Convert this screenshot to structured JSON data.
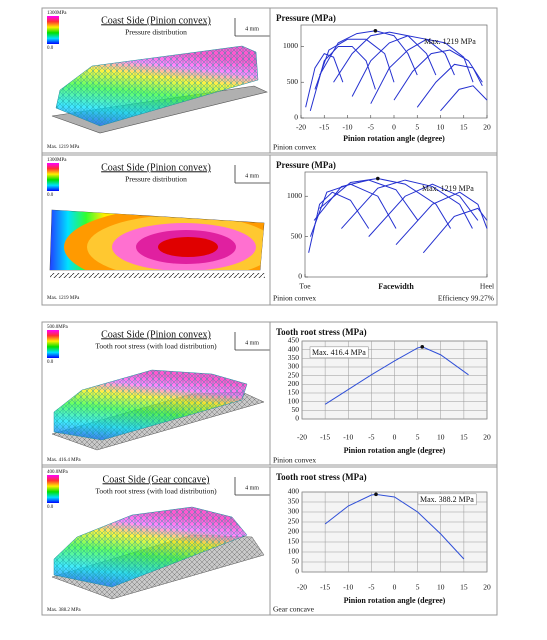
{
  "panels": [
    {
      "scale_max": "1300MPa",
      "scale_min": "0.0",
      "title": "Coast Side  (Pinion convex)",
      "subtitle": "Pressure distribution",
      "scale_bar": "4 mm",
      "max_label": "Max. 1219 MPa"
    },
    {
      "scale_max": "1300MPa",
      "scale_min": "0.0",
      "title": "Coast Side  (Pinion convex)",
      "subtitle": "Pressure distribution",
      "scale_bar": "4 mm",
      "max_label": "Max. 1219 MPa"
    },
    {
      "scale_max": "500.0MPa",
      "scale_min": "0.0",
      "title": "Coast Side  (Pinion convex)",
      "subtitle": "Tooth root stress (with load distribution)",
      "scale_bar": "4 mm",
      "max_label": "Max. 416.4 MPa"
    },
    {
      "scale_max": "400.0MPa",
      "scale_min": "0.0",
      "title": "Coast Side  (Gear concave)",
      "subtitle": "Tooth root stress (with load distribution)",
      "scale_bar": "4 mm",
      "max_label": "Max. 388.2 MPa"
    }
  ],
  "chart_data": [
    {
      "type": "line",
      "title": "Pressure  (MPa)",
      "xlabel": "Pinion rotation angle  (degree)",
      "annotation": "Max. 1219 MPa",
      "footer": "Pinion convex",
      "xlim": [
        -20,
        20
      ],
      "xticks": [
        -20,
        -15,
        -10,
        -5,
        0,
        5,
        10,
        15,
        20
      ],
      "ylim": [
        0,
        1300
      ],
      "yticks": [
        0,
        500,
        1000
      ],
      "grid": false,
      "color": "#2430d0",
      "series": [
        {
          "x": [
            -19,
            -17,
            -15,
            -13,
            -11
          ],
          "values": [
            150,
            700,
            900,
            850,
            500
          ]
        },
        {
          "x": [
            -18,
            -15,
            -12,
            -9,
            -6,
            -4
          ],
          "values": [
            100,
            800,
            1000,
            1000,
            800,
            400
          ]
        },
        {
          "x": [
            -17,
            -14,
            -10,
            -6,
            -2,
            0
          ],
          "values": [
            400,
            950,
            1100,
            1100,
            900,
            500
          ]
        },
        {
          "x": [
            -16,
            -12,
            -8,
            -4,
            0,
            3,
            5
          ],
          "values": [
            600,
            1050,
            1180,
            1219,
            1150,
            900,
            600
          ]
        },
        {
          "x": [
            -13,
            -9,
            -5,
            -1,
            3,
            7,
            9
          ],
          "values": [
            500,
            900,
            1150,
            1200,
            1150,
            900,
            600
          ]
        },
        {
          "x": [
            -9,
            -5,
            -1,
            3,
            7,
            11,
            13
          ],
          "values": [
            300,
            800,
            1050,
            1150,
            1100,
            900,
            600
          ]
        },
        {
          "x": [
            -5,
            -1,
            3,
            7,
            11,
            15,
            17
          ],
          "values": [
            200,
            700,
            950,
            1100,
            1050,
            850,
            500
          ]
        },
        {
          "x": [
            0,
            4,
            8,
            12,
            16,
            19
          ],
          "values": [
            250,
            650,
            900,
            950,
            800,
            500
          ]
        },
        {
          "x": [
            5,
            9,
            13,
            17,
            19
          ],
          "values": [
            150,
            500,
            750,
            700,
            450
          ]
        },
        {
          "x": [
            10,
            14,
            17,
            20
          ],
          "values": [
            100,
            400,
            450,
            250
          ]
        }
      ]
    },
    {
      "type": "line",
      "title": "Pressure  (MPa)",
      "xlabel": "Facewidth",
      "annotation": "Max. 1219 MPa",
      "footer": "Pinion convex",
      "footnote": "Efficiency 99.27%",
      "xlim": [
        0,
        1
      ],
      "xticks": [
        {
          "value": 0,
          "label": "Toe"
        },
        {
          "value": 1,
          "label": "Heel"
        }
      ],
      "ylim": [
        0,
        1300
      ],
      "yticks": [
        0,
        500,
        1000
      ],
      "grid": false,
      "color": "#2430d0",
      "series": [
        {
          "x": [
            0.02,
            0.08,
            0.15,
            0.25,
            0.35
          ],
          "values": [
            300,
            900,
            1050,
            950,
            600
          ]
        },
        {
          "x": [
            0.03,
            0.12,
            0.25,
            0.4,
            0.5
          ],
          "values": [
            500,
            1050,
            1150,
            1000,
            600
          ]
        },
        {
          "x": [
            0.05,
            0.2,
            0.35,
            0.5,
            0.62
          ],
          "values": [
            700,
            1120,
            1200,
            1080,
            700
          ]
        },
        {
          "x": [
            0.08,
            0.25,
            0.4,
            0.55,
            0.72,
            0.8
          ],
          "values": [
            850,
            1170,
            1219,
            1150,
            900,
            600
          ]
        },
        {
          "x": [
            0.2,
            0.4,
            0.55,
            0.7,
            0.85,
            0.92
          ],
          "values": [
            600,
            1100,
            1200,
            1120,
            900,
            600
          ]
        },
        {
          "x": [
            0.35,
            0.55,
            0.7,
            0.85,
            0.95
          ],
          "values": [
            500,
            1000,
            1150,
            1000,
            700
          ]
        },
        {
          "x": [
            0.5,
            0.7,
            0.85,
            0.95,
            1.0
          ],
          "values": [
            400,
            900,
            1050,
            900,
            600
          ]
        },
        {
          "x": [
            0.65,
            0.82,
            0.95,
            1.0
          ],
          "values": [
            300,
            750,
            850,
            700
          ]
        }
      ]
    },
    {
      "type": "line",
      "title": "Tooth root stress  (MPa)",
      "xlabel": "Pinion rotation angle  (degree)",
      "annotation": "Max. 416.4 MPa",
      "footer": "Pinion convex",
      "xlim": [
        -20,
        20
      ],
      "xticks": [
        -20,
        -15,
        -10,
        -5,
        0,
        5,
        10,
        15,
        20
      ],
      "ylim": [
        0,
        450
      ],
      "yticks": [
        0,
        50,
        100,
        150,
        200,
        250,
        300,
        350,
        400,
        450
      ],
      "grid": true,
      "color": "#3050d8",
      "series": [
        {
          "x": [
            -15,
            -10,
            -5,
            0,
            5,
            6,
            10,
            16
          ],
          "values": [
            85,
            170,
            255,
            335,
            410,
            416.4,
            370,
            255
          ]
        }
      ]
    },
    {
      "type": "line",
      "title": "Tooth root stress  (MPa)",
      "xlabel": "Pinion rotation angle  (degree)",
      "annotation": "Max. 388.2 MPa",
      "footer": "Gear concave",
      "xlim": [
        -20,
        20
      ],
      "xticks": [
        -20,
        -15,
        -10,
        -5,
        0,
        5,
        10,
        15,
        20
      ],
      "ylim": [
        0,
        400
      ],
      "yticks": [
        0,
        50,
        100,
        150,
        200,
        250,
        300,
        350,
        400
      ],
      "grid": true,
      "color": "#3050d8",
      "series": [
        {
          "x": [
            -15,
            -10,
            -5,
            -4,
            0,
            5,
            10,
            15
          ],
          "values": [
            240,
            330,
            385,
            388.2,
            375,
            300,
            190,
            65
          ]
        }
      ]
    }
  ]
}
